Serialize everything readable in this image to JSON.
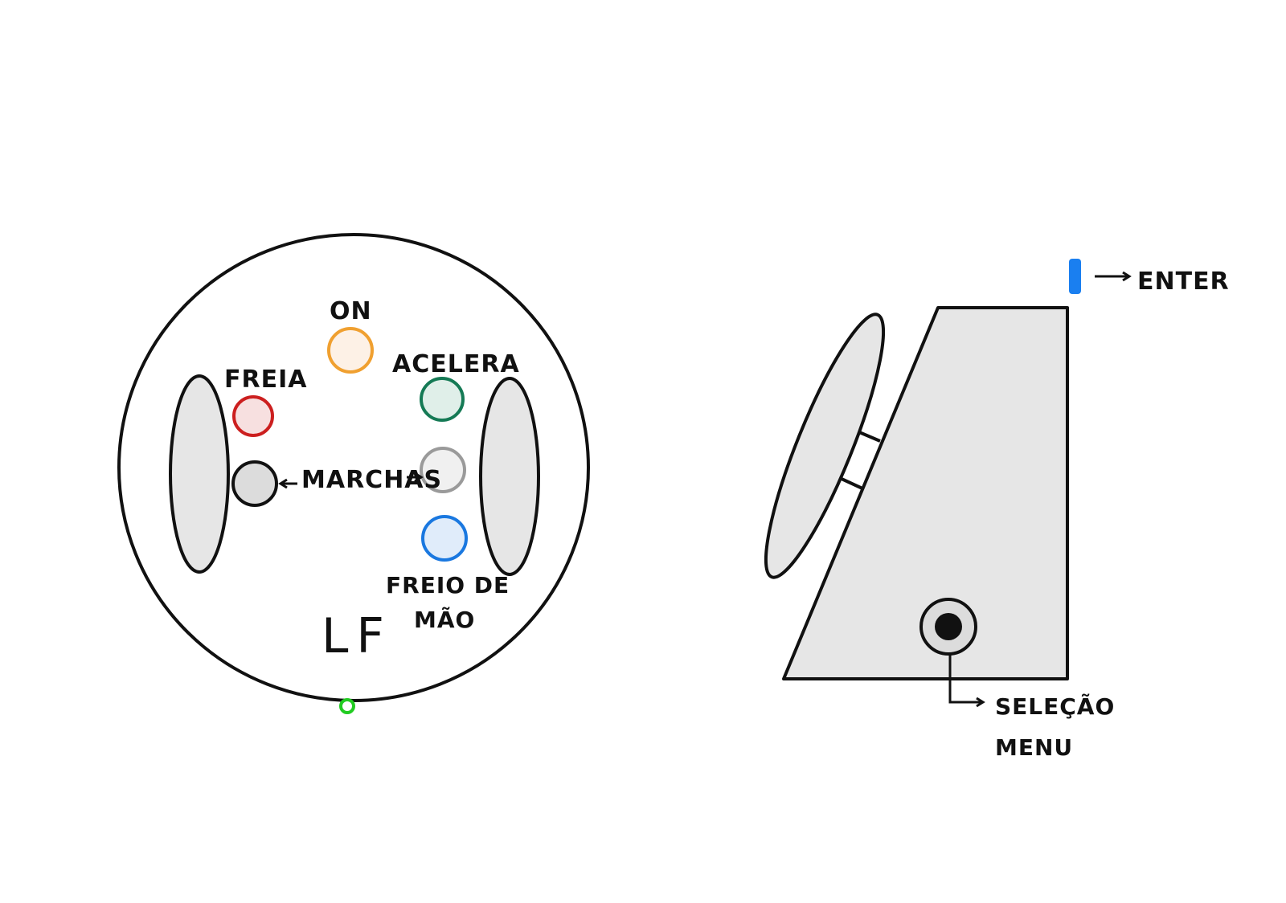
{
  "front_view": {
    "labels": {
      "on": "ON",
      "freia": "FREIA",
      "acelera": "ACELERA",
      "marchas": "MARCHAS",
      "freio_de_mao_line1": "FREIO DE",
      "freio_de_mao_line2": "MÃO",
      "logo": "LF"
    },
    "buttons": {
      "on": {
        "stroke": "#f0a030",
        "fill": "#fdf1e6"
      },
      "freia": {
        "stroke": "#cc1f1f",
        "fill": "#f7e0e0"
      },
      "acelera": {
        "stroke": "#157a55",
        "fill": "#e0efe9"
      },
      "marcha_left": {
        "stroke": "#111111",
        "fill": "#dcdcdc"
      },
      "marcha_right": {
        "stroke": "#9a9a9a",
        "fill": "#f0f0f0"
      },
      "freio_de_mao": {
        "stroke": "#1a78e0",
        "fill": "#e0ecfa"
      }
    },
    "indicator_color": "#22cc22"
  },
  "side_view": {
    "labels": {
      "enter": "ENTER",
      "selecao": "SELEÇÃO",
      "menu": "MENU"
    },
    "enter_button_color": "#1a7ff0",
    "body_fill": "#e6e6e6"
  }
}
